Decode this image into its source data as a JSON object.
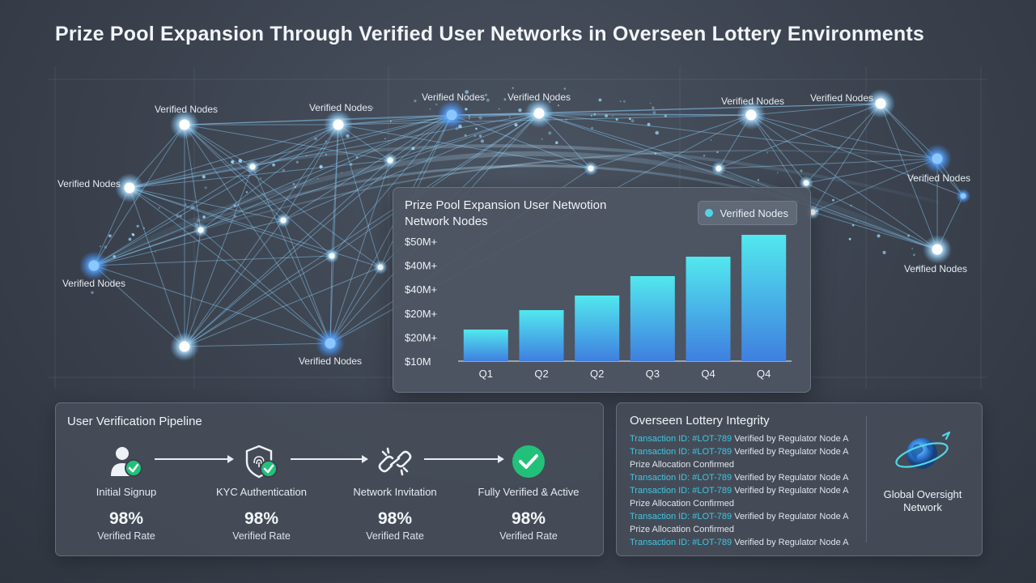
{
  "title": "Prize Pool Expansion Through Verified User Networks in Overseen Lottery Environments",
  "network": {
    "node_label": "Verified Nodes"
  },
  "chart": {
    "title_line1": "Prize Pool Expansion User Netwotion",
    "title_line2": "Network Nodes",
    "legend_label": "Verified Nodes",
    "legend_color": "#4fd6e6"
  },
  "chart_data": {
    "type": "bar",
    "categories": [
      "Q1",
      "Q2",
      "Q2",
      "Q3",
      "Q4",
      "Q4"
    ],
    "values": [
      13,
      21,
      27,
      35,
      43,
      52
    ],
    "y_tick_labels": [
      "$10M",
      "$20M+",
      "$20M+",
      "$40M+",
      "$40M+",
      "$50M+"
    ],
    "ylim": [
      0,
      52
    ],
    "series": [
      {
        "name": "Verified Nodes",
        "values": [
          13,
          21,
          27,
          35,
          43,
          52
        ]
      }
    ],
    "bar_gradient": [
      "#52e8ee",
      "#3f7fe0"
    ],
    "legend_position": "top-right"
  },
  "pipeline": {
    "title": "User Verification Pipeline",
    "steps": [
      {
        "label": "Initial Signup",
        "pct": "98%",
        "sub": "Verified Rate"
      },
      {
        "label": "KYC Authentication",
        "pct": "98%",
        "sub": "Verified Rate"
      },
      {
        "label": "Network Invitation",
        "pct": "98%",
        "sub": "Verified Rate"
      },
      {
        "label": "Fully Verified & Active",
        "pct": "98%",
        "sub": "Verified Rate"
      }
    ],
    "accent": "#22c17a"
  },
  "integrity": {
    "title": "Overseen Lottery Integrity",
    "log": [
      {
        "tid": "Transaction ID: ",
        "ref": "#LOT-789",
        "text": " Verified by Regulator Node A"
      },
      {
        "tid": "Transaction ID: ",
        "ref": "#LOT-789",
        "text": " Verified by Regulator Node A"
      },
      {
        "tid": "",
        "ref": "",
        "text": "Prize Allocation Confirmed"
      },
      {
        "tid": "Transaction ID: ",
        "ref": "#LOT-789",
        "text": " Verified by Regulator Node A"
      },
      {
        "tid": "Transaction ID: ",
        "ref": "#LOT-789",
        "text": " Verified by Regulator Node A"
      },
      {
        "tid": "",
        "ref": "",
        "text": "Prize Allocation Confirmed"
      },
      {
        "tid": "Transaction ID: ",
        "ref": "#LOT-789",
        "text": " Verified by Regulator Node A"
      },
      {
        "tid": "",
        "ref": "",
        "text": "Prize Allocation Confirmed"
      },
      {
        "tid": "Transaction ID: ",
        "ref": "#LOT-789",
        "text": " Verified by Regulator Node A"
      }
    ],
    "globe_label_line1": "Global Oversight",
    "globe_label_line2": "Network"
  }
}
